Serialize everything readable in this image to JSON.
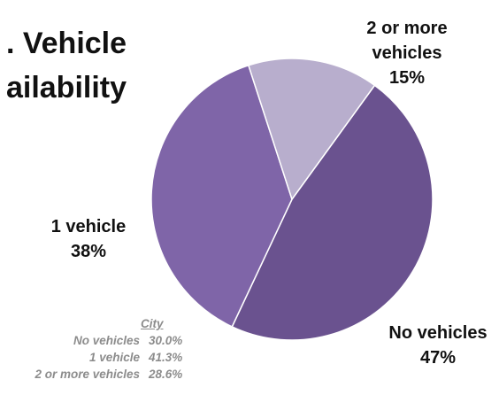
{
  "chart_data": {
    "type": "pie",
    "title_lines": [
      ". Vehicle",
      "ailability"
    ],
    "categories": [
      "No vehicles",
      "1 vehicle",
      "2 or more vehicles"
    ],
    "values": [
      47,
      38,
      15
    ],
    "value_labels": [
      "47%",
      "38%",
      "15%"
    ],
    "label_lines": [
      [
        "No vehicles",
        "47%"
      ],
      [
        "1 vehicle",
        "38%"
      ],
      [
        "2 or more",
        "vehicles",
        "15%"
      ]
    ],
    "colors": [
      "#6a528f",
      "#7f65a8",
      "#b8aecd"
    ]
  },
  "city_table": {
    "header": "City",
    "rows": [
      {
        "label": "No vehicles",
        "value": "30.0%"
      },
      {
        "label": "1 vehicle",
        "value": "41.3%"
      },
      {
        "label": "2 or more vehicles",
        "value": "28.6%"
      }
    ]
  }
}
